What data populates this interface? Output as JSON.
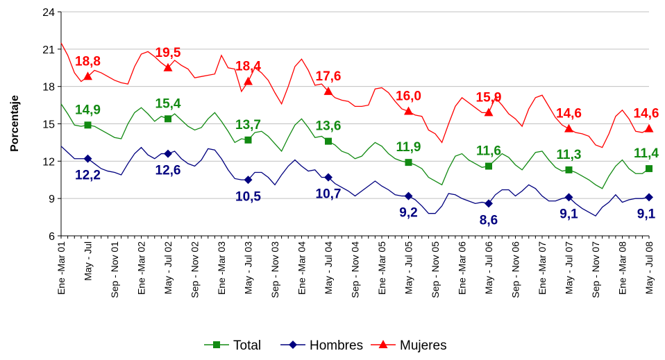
{
  "chart_data": {
    "type": "line",
    "ylabel": "Porcentaje",
    "ylim": [
      6,
      24
    ],
    "yticks": [
      6,
      9,
      12,
      15,
      18,
      21,
      24
    ],
    "grid": true,
    "legend": "bottom",
    "categories": [
      "Ene -Mar 01",
      null,
      null,
      null,
      "May - Jul",
      null,
      null,
      null,
      "Sep - Nov 01",
      null,
      null,
      null,
      "Ene -Mar 02",
      null,
      null,
      null,
      "May - Jul 02",
      null,
      null,
      null,
      "Sep - Nov 02",
      null,
      null,
      null,
      "Ene -Mar 03",
      null,
      null,
      null,
      "May - Jul 03",
      null,
      null,
      null,
      "Sep - Nov 03",
      null,
      null,
      null,
      "Ene -Mar 04",
      null,
      null,
      null,
      "May - Jul 04",
      null,
      null,
      null,
      "Sep - Nov 04",
      null,
      null,
      null,
      "Ene -Mar 05",
      null,
      null,
      null,
      "May - Jul 05",
      null,
      null,
      null,
      "Sep - Nov 05",
      null,
      null,
      null,
      "Ene -Mar 06",
      null,
      null,
      null,
      "May - Jul 06",
      null,
      null,
      null,
      "Sep - Nov 06",
      null,
      null,
      null,
      "Ene -Mar 07",
      null,
      null,
      null,
      "May - Jul 07",
      null,
      null,
      null,
      "Sep - Nov 07",
      null,
      null,
      null,
      "Ene -Mar 08",
      null,
      null,
      null,
      "May - Jul 08"
    ],
    "series": [
      {
        "name": "Total",
        "color": "#128a12",
        "marker": "square",
        "values": [
          16.6,
          15.8,
          14.9,
          14.8,
          14.9,
          14.8,
          14.5,
          14.2,
          13.9,
          13.8,
          15.0,
          15.9,
          16.3,
          15.8,
          15.2,
          15.6,
          15.4,
          15.8,
          15.3,
          14.8,
          14.5,
          14.7,
          15.4,
          15.9,
          15.2,
          14.4,
          13.5,
          13.8,
          13.7,
          14.3,
          14.4,
          14.0,
          13.4,
          12.8,
          13.9,
          14.9,
          15.4,
          14.7,
          13.9,
          14.0,
          13.6,
          13.3,
          12.8,
          12.6,
          12.2,
          12.4,
          13.0,
          13.5,
          13.2,
          12.6,
          12.2,
          12.0,
          11.9,
          11.7,
          11.4,
          10.7,
          10.4,
          10.1,
          11.4,
          12.4,
          12.6,
          12.1,
          11.8,
          11.5,
          11.6,
          12.1,
          12.6,
          12.3,
          11.7,
          11.3,
          12.0,
          12.7,
          12.8,
          12.1,
          11.5,
          11.2,
          11.3,
          11.1,
          10.8,
          10.5,
          10.1,
          9.8,
          10.8,
          11.6,
          12.1,
          11.4,
          11.0,
          11.0,
          11.4
        ],
        "value_labels": [
          null,
          null,
          null,
          null,
          "14,9",
          null,
          null,
          null,
          null,
          null,
          null,
          null,
          null,
          null,
          null,
          null,
          "15,4",
          null,
          null,
          null,
          null,
          null,
          null,
          null,
          null,
          null,
          null,
          null,
          "13,7",
          null,
          null,
          null,
          null,
          null,
          null,
          null,
          null,
          null,
          null,
          null,
          "13,6",
          null,
          null,
          null,
          null,
          null,
          null,
          null,
          null,
          null,
          null,
          null,
          "11,9",
          null,
          null,
          null,
          null,
          null,
          null,
          null,
          null,
          null,
          null,
          null,
          "11,6",
          null,
          null,
          null,
          null,
          null,
          null,
          null,
          null,
          null,
          null,
          null,
          "11,3",
          null,
          null,
          null,
          null,
          null,
          null,
          null,
          null,
          null,
          null,
          null,
          "11,4"
        ]
      },
      {
        "name": "Hombres",
        "color": "#00007f",
        "marker": "diamond",
        "values": [
          13.2,
          12.7,
          12.2,
          12.2,
          12.2,
          11.8,
          11.4,
          11.2,
          11.1,
          10.9,
          11.8,
          12.6,
          13.1,
          12.5,
          12.2,
          12.6,
          12.6,
          12.8,
          12.2,
          11.8,
          11.6,
          12.1,
          13.0,
          12.9,
          12.2,
          11.3,
          10.6,
          10.5,
          10.5,
          11.1,
          11.1,
          10.7,
          10.1,
          10.9,
          11.6,
          12.1,
          11.6,
          11.2,
          11.3,
          10.7,
          10.7,
          10.2,
          9.9,
          9.6,
          9.2,
          9.6,
          10.0,
          10.4,
          10.0,
          9.7,
          9.3,
          9.2,
          9.2,
          8.9,
          8.4,
          7.8,
          7.8,
          8.4,
          9.4,
          9.3,
          9.0,
          8.8,
          8.6,
          8.7,
          8.6,
          9.3,
          9.7,
          9.7,
          9.2,
          9.6,
          10.1,
          9.8,
          9.2,
          8.8,
          8.8,
          9.0,
          9.1,
          8.6,
          8.2,
          7.9,
          7.6,
          8.3,
          8.7,
          9.3,
          8.7,
          8.9,
          9.0,
          9.0,
          9.1
        ],
        "value_labels": [
          null,
          null,
          null,
          null,
          "12,2",
          null,
          null,
          null,
          null,
          null,
          null,
          null,
          null,
          null,
          null,
          null,
          "12,6",
          null,
          null,
          null,
          null,
          null,
          null,
          null,
          null,
          null,
          null,
          null,
          "10,5",
          null,
          null,
          null,
          null,
          null,
          null,
          null,
          null,
          null,
          null,
          null,
          "10,7",
          null,
          null,
          null,
          null,
          null,
          null,
          null,
          null,
          null,
          null,
          null,
          "9,2",
          null,
          null,
          null,
          null,
          null,
          null,
          null,
          null,
          null,
          null,
          null,
          "8,6",
          null,
          null,
          null,
          null,
          null,
          null,
          null,
          null,
          null,
          null,
          null,
          "9,1",
          null,
          null,
          null,
          null,
          null,
          null,
          null,
          null,
          null,
          null,
          null,
          "9,1"
        ]
      },
      {
        "name": "Mujeres",
        "color": "#ff0000",
        "marker": "triangle",
        "values": [
          21.5,
          20.5,
          19.1,
          18.4,
          18.8,
          19.3,
          19.1,
          18.8,
          18.5,
          18.3,
          18.2,
          19.6,
          20.6,
          20.8,
          20.4,
          19.9,
          19.5,
          20.1,
          19.7,
          19.4,
          18.7,
          18.8,
          18.9,
          19.0,
          20.5,
          19.5,
          19.4,
          17.6,
          18.4,
          19.5,
          19.1,
          18.5,
          17.5,
          16.6,
          18.0,
          19.6,
          20.2,
          19.3,
          18.1,
          18.2,
          17.6,
          17.1,
          16.9,
          16.8,
          16.4,
          16.4,
          16.5,
          17.8,
          17.9,
          17.5,
          16.8,
          16.2,
          16.0,
          15.7,
          15.6,
          14.5,
          14.2,
          13.5,
          15.0,
          16.4,
          17.1,
          16.7,
          16.3,
          15.9,
          15.9,
          17.1,
          16.5,
          15.8,
          15.4,
          14.8,
          16.2,
          17.1,
          17.3,
          16.4,
          15.5,
          14.9,
          14.6,
          14.3,
          14.2,
          14.0,
          13.3,
          13.1,
          14.2,
          15.6,
          16.1,
          15.4,
          14.4,
          14.3,
          14.6
        ],
        "value_labels": [
          null,
          null,
          null,
          null,
          "18,8",
          null,
          null,
          null,
          null,
          null,
          null,
          null,
          null,
          null,
          null,
          null,
          "19,5",
          null,
          null,
          null,
          null,
          null,
          null,
          null,
          null,
          null,
          null,
          null,
          "18,4",
          null,
          null,
          null,
          null,
          null,
          null,
          null,
          null,
          null,
          null,
          null,
          "17,6",
          null,
          null,
          null,
          null,
          null,
          null,
          null,
          null,
          null,
          null,
          null,
          "16,0",
          null,
          null,
          null,
          null,
          null,
          null,
          null,
          null,
          null,
          null,
          null,
          "15,9",
          null,
          null,
          null,
          null,
          null,
          null,
          null,
          null,
          null,
          null,
          null,
          "14,6",
          null,
          null,
          null,
          null,
          null,
          null,
          null,
          null,
          null,
          null,
          null,
          "14,6"
        ]
      }
    ]
  }
}
